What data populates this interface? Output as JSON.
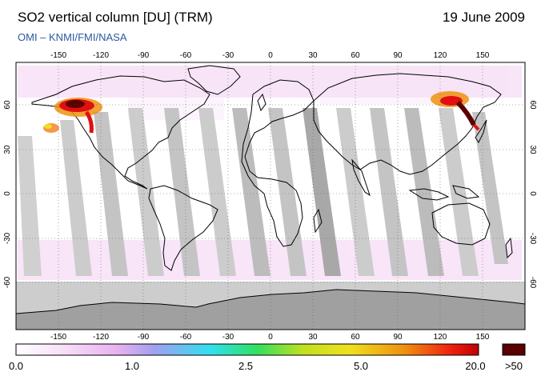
{
  "header": {
    "title": "SO2 vertical column [DU] (TRM)",
    "date": "19 June 2009",
    "subtitle": "OMI  –  KNMI/FMI/NASA"
  },
  "map": {
    "projection": "equirectangular",
    "lon_ticks": [
      "-150",
      "-120",
      "-90",
      "-60",
      "-30",
      "0",
      "30",
      "60",
      "90",
      "120",
      "150"
    ],
    "lat_ticks": [
      "60",
      "30",
      "0",
      "-30",
      "-60"
    ],
    "no_data_color": "#c8c8c8",
    "colors": {
      "background": "#ffffff",
      "plume_dark": "#5a0000",
      "plume_red": "#e01010",
      "plume_orange": "#f08020",
      "plume_yellow": "#f0e020",
      "noise_pink": "#f0c8f0"
    },
    "features": [
      {
        "name": "SO2 plume",
        "region": "Alaska / NE Pacific",
        "max_value": ">50"
      },
      {
        "name": "SO2 plume",
        "region": "Kamchatka / Kuril Islands",
        "max_value": ">50"
      }
    ]
  },
  "colorbar": {
    "labels": [
      "0.0",
      "1.0",
      "2.5",
      "5.0",
      "20.0",
      ">50"
    ],
    "stops": [
      "#ffffff",
      "#f8e0f8",
      "#e8b0f0",
      "#a0a0f0",
      "#30e0f0",
      "#30e060",
      "#c0e020",
      "#f0e020",
      "#f09010",
      "#f02010",
      "#c00000"
    ],
    "overflow_color": "#5a0000"
  }
}
